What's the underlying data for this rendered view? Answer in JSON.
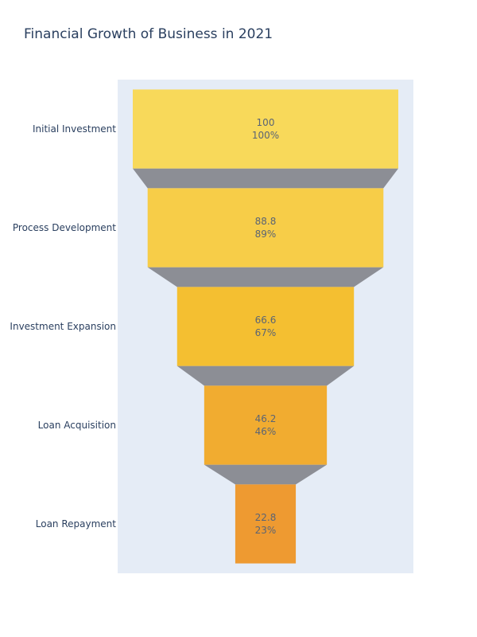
{
  "chart_data": {
    "type": "funnel",
    "title": "Financial Growth of Business in 2021",
    "categories": [
      "Initial Investment",
      "Process Development",
      "Investment Expansion",
      "Loan Acquisition",
      "Loan Repayment"
    ],
    "values": [
      100,
      88.8,
      66.6,
      46.2,
      22.8
    ],
    "percent_labels": [
      "100%",
      "89%",
      "67%",
      "46%",
      "23%"
    ],
    "colors": [
      "#f8d95a",
      "#f7cd48",
      "#f4bf31",
      "#f1ac30",
      "#ee9a31"
    ],
    "connector_color": "#8c8e95",
    "plot_background": "#e5ecf6"
  }
}
